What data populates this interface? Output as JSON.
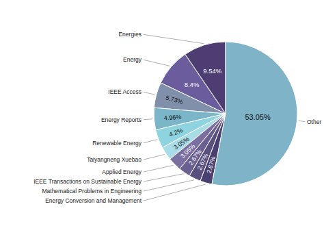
{
  "chart_data": {
    "type": "pie",
    "categories": [
      "Energies",
      "Energy",
      "IEEE Access",
      "Energy Reports",
      "Renewable Energy",
      "Taiyangneng Xuebao",
      "Applied Energy",
      "IEEE Transactions on Sustainable Energy",
      "Mathematical Problems in Engineering",
      "Energy Conversion and Management",
      "Other"
    ],
    "values": [
      9.54,
      8.4,
      5.73,
      4.96,
      4.2,
      3.05,
      3.05,
      2.67,
      2.67,
      2.67,
      53.05
    ],
    "value_labels": [
      "9.54%",
      "8.4%",
      "5.73%",
      "4.96%",
      "4.2%",
      "3.05%",
      "3.05%",
      "2.67%",
      "2.67%",
      "2.67%",
      "53.05%"
    ],
    "colors": [
      "#4e3d72",
      "#6b5c9e",
      "#8090aa",
      "#7ab5c8",
      "#8dd4e0",
      "#a8dde8",
      "#7a6fa0",
      "#6a5f90",
      "#5a5080",
      "#4a4070",
      "#7fb3c8"
    ],
    "data_labels": true
  }
}
